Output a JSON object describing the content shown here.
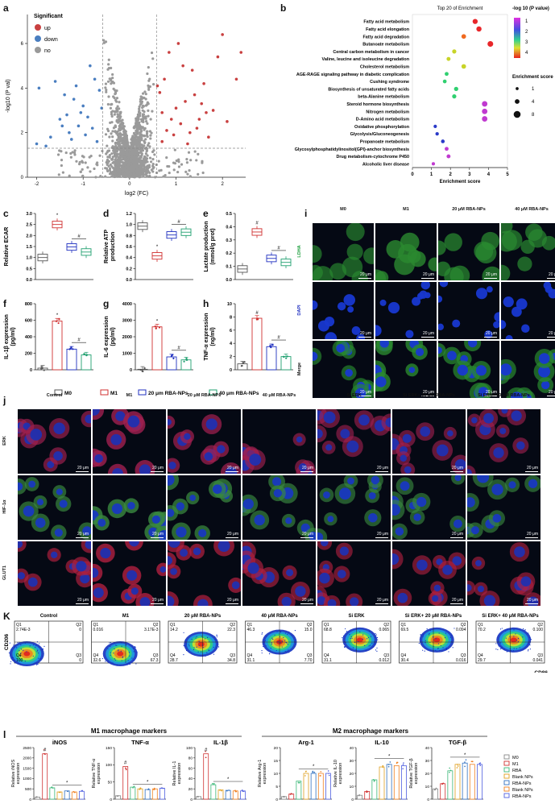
{
  "panels": {
    "a": {
      "letter": "a",
      "legend_title": "Significant",
      "legend": [
        {
          "label": "up",
          "color": "#c94040"
        },
        {
          "label": "down",
          "color": "#4a7ec0"
        },
        {
          "label": "no",
          "color": "#9a9a9a"
        }
      ],
      "xlabel": "log2 (FC)",
      "ylabel": "-log10 (P val)",
      "xticks": [
        "-2",
        "-1",
        "0",
        "1",
        "2"
      ],
      "yticks": [
        "0",
        "2",
        "4",
        "6"
      ]
    },
    "b": {
      "letter": "b",
      "title": "Top 20 of Enrichment",
      "xlabel": "Enrichment score",
      "xticks": [
        "0",
        "1",
        "2",
        "3",
        "4",
        "5"
      ],
      "color_title": "-log 10 (P value)",
      "color_ticks": [
        "1",
        "2",
        "3",
        "4"
      ],
      "size_title": "Enrichment score",
      "size_ticks": [
        "1",
        "4",
        "8"
      ],
      "terms": [
        "Fatty acid metabolism",
        "Fatty acid elongation",
        "Fatty acid degradation",
        "Butanoate metabolism",
        "Central carbon metabolism in cancer",
        "Valine, leucine and isoleucine degradation",
        "Cholesterol metabolism",
        "AGE-RAGE signaling pathway in diabetic complication",
        "Cushing syndrome",
        "Biosynthesis of unsaturated fatty acids",
        "beta-Alanine metabolism",
        "Steroid hormone biosynthesis",
        "Nitrogen metabolism",
        "D-Amino acid metabolism",
        "Oxidative phosphorylation",
        "Glycolysis/Gluconeogenesis",
        "Propanoate metabolism",
        "Glycosylphosphatidylinositol(GPI)-anchor biosynthesis",
        "Drug metabolism-cytochrome P450",
        "Alcoholic liver disease"
      ]
    },
    "c": {
      "letter": "c",
      "ylabel": "Relative ECAR",
      "yticks": [
        "0.0",
        "0.5",
        "1.0",
        "1.5",
        "2.0",
        "2.5",
        "3.0"
      ],
      "sig": [
        "*",
        "#"
      ]
    },
    "d": {
      "letter": "d",
      "ylabel": "Relative ATP production",
      "yticks": [
        "0.0",
        "0.2",
        "0.4",
        "0.6",
        "0.8",
        "1.0",
        "1.2"
      ],
      "sig": [
        "*",
        "#"
      ]
    },
    "e": {
      "letter": "e",
      "ylabel": "Lactate production (mmol/g prot)",
      "yticks": [
        "0.0",
        "0.1",
        "0.2",
        "0.3",
        "0.4",
        "0.5"
      ],
      "sig": [
        "#",
        "#"
      ]
    },
    "f": {
      "letter": "f",
      "ylabel": "IL-1β expression (pg/ml)",
      "yticks": [
        "0",
        "200",
        "400",
        "600",
        "800"
      ],
      "sig": [
        "*",
        "#"
      ]
    },
    "g": {
      "letter": "g",
      "ylabel": "IL-6 expression (pg/ml)",
      "yticks": [
        "0",
        "1000",
        "2000",
        "3000",
        "4000"
      ],
      "sig": [
        "*",
        "#"
      ]
    },
    "h": {
      "letter": "h",
      "ylabel": "TNF-α expression (ng/ml)",
      "yticks": [
        "0",
        "2",
        "4",
        "6",
        "8",
        "10"
      ],
      "sig": [
        "#",
        "#"
      ]
    },
    "group_legend": [
      {
        "label": "M0",
        "color": "#555555"
      },
      {
        "label": "M1",
        "color": "#d03030"
      },
      {
        "label": "20 μm RBA-NPs",
        "color": "#2030c0"
      },
      {
        "label": "40 μm RBA-NPs",
        "color": "#20a070"
      }
    ],
    "i": {
      "letter": "i",
      "cols": [
        "M0",
        "M1",
        "20 μM RBA-NPs",
        "40 μM RBA-NPs"
      ],
      "rows": [
        "LDHA",
        "DAPI",
        "Merge"
      ],
      "scale": "20 μm"
    },
    "j": {
      "letter": "j",
      "cols": [
        "Control",
        "M1",
        "20 μM RBA-NPs",
        "40 μM RBA-NPs",
        "Si ERK",
        "Si ERK+ 20 μM RBA-NPs",
        "Si ERK+ 40 μM RBA-NPs"
      ],
      "rows": [
        "ERK",
        "HIF-1α",
        "GLUT1"
      ],
      "scale": "20 μm"
    },
    "K": {
      "letter": "K",
      "ylabel": "CD206",
      "xlabel": "CD86",
      "plots": [
        {
          "title": "Control",
          "q": [
            "2.74E-3",
            "0",
            "100",
            "0"
          ]
        },
        {
          "title": "M1",
          "q": [
            "0.016",
            "3.17E-3",
            "32.6",
            "67.3"
          ]
        },
        {
          "title": "20 μM RBA-NPs",
          "q": [
            "14.2",
            "22.3",
            "28.7",
            "34.8"
          ]
        },
        {
          "title": "40 μM RBA-NPs",
          "q": [
            "46.3",
            "15.0",
            "31.1",
            "7.70"
          ]
        },
        {
          "title": "Si ERK",
          "q": [
            "68.8",
            "0.065",
            "31.1",
            "0.012"
          ]
        },
        {
          "title": "Si ERK+ 20 μM RBA-NPs",
          "q": [
            "69.5",
            "0.094",
            "30.4",
            "0.016"
          ]
        },
        {
          "title": "Si ERK+ 40 μM RBA-NPs",
          "q": [
            "70.2",
            "0.100",
            "29.7",
            "0.041"
          ]
        }
      ],
      "qlabels": [
        "Q1",
        "Q2",
        "Q4",
        "Q3"
      ]
    },
    "l": {
      "letter": "l",
      "m1_header": "M1 macrophage markers",
      "m2_header": "M2 macrophage markers",
      "charts": [
        {
          "title": "iNOS",
          "ylabel": "Relative iNOS expression",
          "yticks": [
            "0",
            "500",
            "1000",
            "1500",
            "2000",
            "2500"
          ]
        },
        {
          "title": "TNF-α",
          "ylabel": "Relative TNF-α expression",
          "yticks": [
            "0",
            "50",
            "100",
            "150"
          ]
        },
        {
          "title": "IL-1β",
          "ylabel": "Relative IL-1 expression",
          "yticks": [
            "0",
            "20",
            "40",
            "60",
            "80",
            "100"
          ]
        },
        {
          "title": "Arg-1",
          "ylabel": "Relative Arg-1 expression",
          "yticks": [
            "0",
            "5",
            "10",
            "15",
            "20"
          ]
        },
        {
          "title": "IL-10",
          "ylabel": "Relative IL-10 expression",
          "yticks": [
            "0",
            "10",
            "20",
            "30",
            "40"
          ]
        },
        {
          "title": "TGF-β",
          "ylabel": "Relative TGF-β expression",
          "yticks": [
            "0",
            "10",
            "20",
            "30",
            "40"
          ]
        }
      ],
      "legend": [
        {
          "label": "M0",
          "color": "#888888"
        },
        {
          "label": "M1",
          "color": "#d03030"
        },
        {
          "label": "RBA",
          "color": "#3cb878"
        },
        {
          "label": "Blank NPs",
          "color": "#e0a020"
        },
        {
          "label": "RBA-NPs",
          "color": "#3070c0"
        },
        {
          "label": "Blank NPs",
          "color": "#f08020"
        },
        {
          "label": "RBA-NPs",
          "color": "#5060e0"
        }
      ]
    }
  },
  "chart_data": [
    {
      "type": "scatter",
      "panel": "a",
      "xlabel": "log2 (FC)",
      "ylabel": "-log10 (P val)",
      "xlim": [
        -2.2,
        2.5
      ],
      "ylim": [
        0,
        7.3
      ],
      "thresholds": {
        "x": [
          -0.58,
          0.58
        ],
        "y": 1.3
      },
      "series": [
        {
          "name": "up",
          "points": [
            [
              0.7,
              1.6
            ],
            [
              0.8,
              2.1
            ],
            [
              0.9,
              2.6
            ],
            [
              1.0,
              3.1
            ],
            [
              1.1,
              2.4
            ],
            [
              1.2,
              3.4
            ],
            [
              0.65,
              3.8
            ],
            [
              0.75,
              4.4
            ],
            [
              1.3,
              2.0
            ],
            [
              1.4,
              3.7
            ],
            [
              1.5,
              2.6
            ],
            [
              1.6,
              4.2
            ],
            [
              1.7,
              1.8
            ],
            [
              1.8,
              3.0
            ],
            [
              1.9,
              5.4
            ],
            [
              2.1,
              2.5
            ],
            [
              2.3,
              4.4
            ],
            [
              2.0,
              6.4
            ],
            [
              2.4,
              5.6
            ],
            [
              1.15,
              5.0
            ],
            [
              0.85,
              5.6
            ],
            [
              1.05,
              6.0
            ],
            [
              1.35,
              4.8
            ],
            [
              1.55,
              3.3
            ],
            [
              0.95,
              1.9
            ],
            [
              1.25,
              1.5
            ],
            [
              1.45,
              2.2
            ],
            [
              0.7,
              2.9
            ],
            [
              0.6,
              4.1
            ],
            [
              1.65,
              2.9
            ]
          ]
        },
        {
          "name": "down",
          "points": [
            [
              -0.7,
              1.6
            ],
            [
              -0.8,
              2.2
            ],
            [
              -0.9,
              2.7
            ],
            [
              -1.0,
              3.2
            ],
            [
              -1.1,
              2.3
            ],
            [
              -1.2,
              3.5
            ],
            [
              -0.65,
              3.9
            ],
            [
              -0.75,
              4.4
            ],
            [
              -1.3,
              2.0
            ],
            [
              -1.4,
              3.7
            ],
            [
              -1.5,
              2.6
            ],
            [
              -1.6,
              4.3
            ],
            [
              -1.7,
              1.8
            ],
            [
              -1.8,
              1.4
            ],
            [
              -1.95,
              4.0
            ],
            [
              -2.0,
              1.5
            ],
            [
              -0.85,
              5.0
            ],
            [
              -1.05,
              2.9
            ],
            [
              -1.25,
              1.7
            ],
            [
              -1.45,
              2.3
            ],
            [
              -0.95,
              1.9
            ],
            [
              -0.6,
              3.1
            ],
            [
              -1.35,
              2.8
            ],
            [
              -1.15,
              4.1
            ]
          ]
        }
      ]
    },
    {
      "type": "scatter",
      "panel": "b",
      "title": "Top 20 of Enrichment",
      "xlabel": "Enrichment score",
      "xlim": [
        0,
        5
      ],
      "categories": [
        "Fatty acid metabolism",
        "Fatty acid elongation",
        "Fatty acid degradation",
        "Butanoate metabolism",
        "Central carbon metabolism in cancer",
        "Valine, leucine and isoleucine degradation",
        "Cholesterol metabolism",
        "AGE-RAGE signaling pathway in diabetic complication",
        "Cushing syndrome",
        "Biosynthesis of unsaturated fatty acids",
        "beta-Alanine metabolism",
        "Steroid hormone biosynthesis",
        "Nitrogen metabolism",
        "D-Amino acid metabolism",
        "Oxidative phosphorylation",
        "Glycolysis/Gluconeogenesis",
        "Propanoate metabolism",
        "Glycosylphosphatidylinositol(GPI)-anchor biosynthesis",
        "Drug metabolism-cytochrome P450",
        "Alcoholic liver disease"
      ],
      "x": [
        3.3,
        3.5,
        2.7,
        4.1,
        2.2,
        1.9,
        2.7,
        1.8,
        1.7,
        2.3,
        2.2,
        3.8,
        3.8,
        3.8,
        1.2,
        1.3,
        1.6,
        1.8,
        1.9,
        1.1
      ],
      "neglog10p": [
        4.3,
        4.3,
        4.0,
        4.4,
        2.9,
        2.6,
        2.6,
        2.5,
        2.4,
        2.2,
        2.1,
        2.0,
        2.0,
        2.0,
        1.3,
        1.3,
        1.4,
        1.6,
        1.6,
        1.6
      ]
    },
    {
      "type": "box",
      "panel": "c",
      "ylabel": "Relative ECAR",
      "ylim": [
        0,
        3
      ],
      "categories": [
        "M0",
        "M1",
        "20 μm RBA-NPs",
        "40 μm RBA-NPs"
      ],
      "values": [
        1.0,
        2.5,
        1.48,
        1.25
      ]
    },
    {
      "type": "box",
      "panel": "d",
      "ylabel": "Relative ATP production",
      "ylim": [
        0,
        1.2
      ],
      "categories": [
        "M0",
        "M1",
        "20 μm RBA-NPs",
        "40 μm RBA-NPs"
      ],
      "values": [
        0.97,
        0.43,
        0.81,
        0.86
      ]
    },
    {
      "type": "box",
      "panel": "e",
      "ylabel": "Lactate production (mmol/g prot)",
      "ylim": [
        0,
        0.5
      ],
      "categories": [
        "M0",
        "M1",
        "20 μm RBA-NPs",
        "40 μm RBA-NPs"
      ],
      "values": [
        0.08,
        0.36,
        0.16,
        0.13
      ]
    },
    {
      "type": "bar",
      "panel": "f",
      "ylabel": "IL-1β expression (pg/ml)",
      "ylim": [
        0,
        800
      ],
      "categories": [
        "M0",
        "M1",
        "20 μm RBA-NPs",
        "40 μm RBA-NPs"
      ],
      "values": [
        20,
        590,
        250,
        180
      ]
    },
    {
      "type": "bar",
      "panel": "g",
      "ylabel": "IL-6 expression (pg/ml)",
      "ylim": [
        0,
        4000
      ],
      "categories": [
        "M0",
        "M1",
        "20 μm RBA-NPs",
        "40 μm RBA-NPs"
      ],
      "values": [
        30,
        2600,
        780,
        600
      ]
    },
    {
      "type": "bar",
      "panel": "h",
      "ylabel": "TNF-α expression (ng/ml)",
      "ylim": [
        0,
        10
      ],
      "categories": [
        "M0",
        "M1",
        "20 μm RBA-NPs",
        "40 μm RBA-NPs"
      ],
      "values": [
        0.9,
        7.8,
        3.5,
        2.0
      ]
    },
    {
      "type": "bar",
      "panel": "l",
      "title": "iNOS",
      "ylim": [
        0,
        2500
      ],
      "categories": [
        "M0",
        "M1",
        "RBA",
        "Blank NPs",
        "RBA-NPs",
        "Blank NPs",
        "RBA-NPs"
      ],
      "values": [
        100,
        2200,
        550,
        350,
        400,
        350,
        380
      ]
    },
    {
      "type": "bar",
      "panel": "l",
      "title": "TNF-α",
      "ylim": [
        0,
        150
      ],
      "categories": [
        "M0",
        "M1",
        "RBA",
        "Blank NPs",
        "RBA-NPs",
        "Blank NPs",
        "RBA-NPs"
      ],
      "values": [
        10,
        95,
        35,
        30,
        28,
        30,
        32
      ]
    },
    {
      "type": "bar",
      "panel": "l",
      "title": "IL-1β",
      "ylim": [
        0,
        100
      ],
      "categories": [
        "M0",
        "M1",
        "RBA",
        "Blank NPs",
        "RBA-NPs",
        "Blank NPs",
        "RBA-NPs"
      ],
      "values": [
        5,
        88,
        28,
        18,
        17,
        16,
        16
      ]
    },
    {
      "type": "bar",
      "panel": "l",
      "title": "Arg-1",
      "ylim": [
        0,
        20
      ],
      "categories": [
        "M0",
        "M1",
        "RBA",
        "Blank NPs",
        "RBA-NPs",
        "Blank NPs",
        "RBA-NPs"
      ],
      "values": [
        1,
        2,
        7,
        10,
        10,
        10,
        10
      ]
    },
    {
      "type": "bar",
      "panel": "l",
      "title": "IL-10",
      "ylim": [
        0,
        40
      ],
      "categories": [
        "M0",
        "M1",
        "RBA",
        "Blank NPs",
        "RBA-NPs",
        "Blank NPs",
        "RBA-NPs"
      ],
      "values": [
        3,
        6,
        15,
        25,
        27,
        26,
        26
      ]
    },
    {
      "type": "bar",
      "panel": "l",
      "title": "TGF-β",
      "ylim": [
        0,
        40
      ],
      "categories": [
        "M0",
        "M1",
        "RBA",
        "Blank NPs",
        "RBA-NPs",
        "Blank NPs",
        "RBA-NPs"
      ],
      "values": [
        8,
        12,
        22,
        27,
        28,
        27,
        27
      ]
    }
  ]
}
